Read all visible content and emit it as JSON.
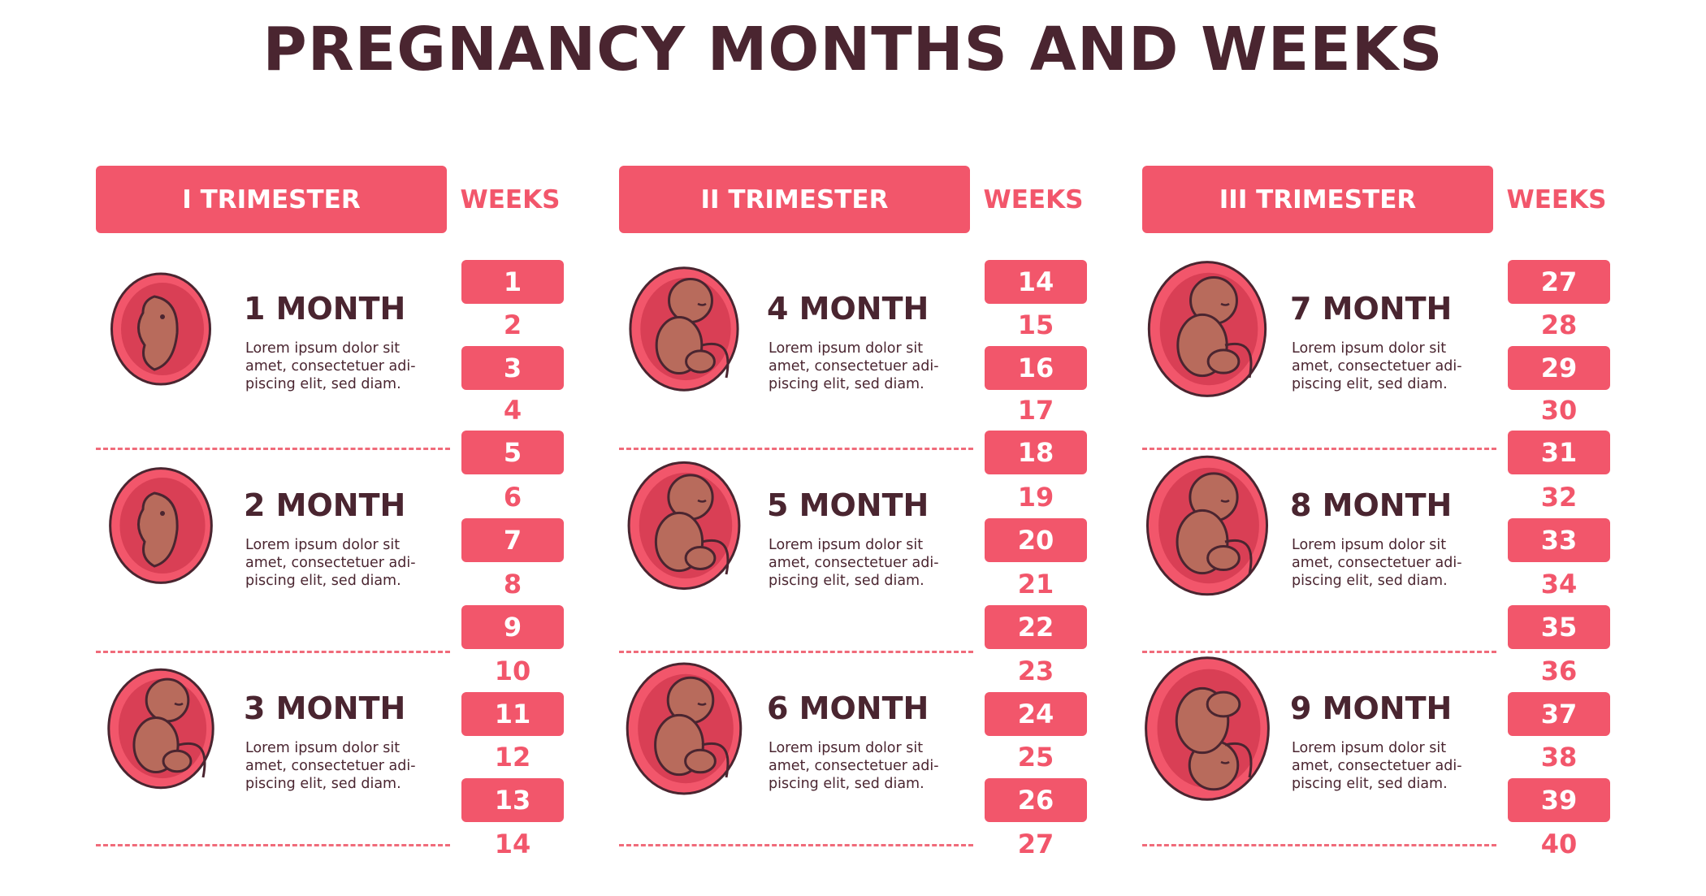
{
  "title": "PREGNANCY MONTHS AND WEEKS",
  "colors": {
    "accent": "#f2566b",
    "dark": "#4a2530",
    "skin": "#b86b5c",
    "womb": "#e8495f"
  },
  "trimesters": [
    {
      "label": "I TRIMESTER",
      "weeks_label": "WEEKS",
      "weeks": [
        "1",
        "2",
        "3",
        "4",
        "5",
        "6",
        "7",
        "8",
        "9",
        "10",
        "11",
        "12",
        "13",
        "14"
      ],
      "months": [
        {
          "name": "1 MONTH",
          "desc": "Lorem ipsum dolor sit amet, consectetuer adi-piscing elit, sed diam.",
          "icon": "embryo-icon"
        },
        {
          "name": "2 MONTH",
          "desc": "Lorem ipsum dolor sit amet, consectetuer adi-piscing elit, sed diam.",
          "icon": "embryo-icon"
        },
        {
          "name": "3 MONTH",
          "desc": "Lorem ipsum dolor sit amet, consectetuer adi-piscing elit, sed diam.",
          "icon": "fetus-icon"
        }
      ]
    },
    {
      "label": "II TRIMESTER",
      "weeks_label": "WEEKS",
      "weeks": [
        "14",
        "15",
        "16",
        "17",
        "18",
        "19",
        "20",
        "21",
        "22",
        "23",
        "24",
        "25",
        "26",
        "27"
      ],
      "months": [
        {
          "name": "4 MONTH",
          "desc": "Lorem ipsum dolor sit amet, consectetuer adi-piscing elit, sed diam.",
          "icon": "fetus-icon"
        },
        {
          "name": "5 MONTH",
          "desc": "Lorem ipsum dolor sit amet, consectetuer adi-piscing elit, sed diam.",
          "icon": "fetus-icon"
        },
        {
          "name": "6 MONTH",
          "desc": "Lorem ipsum dolor sit amet, consectetuer adi-piscing elit, sed diam.",
          "icon": "fetus-icon"
        }
      ]
    },
    {
      "label": "III TRIMESTER",
      "weeks_label": "WEEKS",
      "weeks": [
        "27",
        "28",
        "29",
        "30",
        "31",
        "32",
        "33",
        "34",
        "35",
        "36",
        "37",
        "38",
        "39",
        "40"
      ],
      "months": [
        {
          "name": "7 MONTH",
          "desc": "Lorem ipsum dolor sit amet, consectetuer adi-piscing elit, sed diam.",
          "icon": "fetus-icon"
        },
        {
          "name": "8 MONTH",
          "desc": "Lorem ipsum dolor sit amet, consectetuer adi-piscing elit, sed diam.",
          "icon": "fetus-icon"
        },
        {
          "name": "9 MONTH",
          "desc": "Lorem ipsum dolor sit amet, consectetuer adi-piscing elit, sed diam.",
          "icon": "fetus-head-down-icon"
        }
      ]
    }
  ]
}
